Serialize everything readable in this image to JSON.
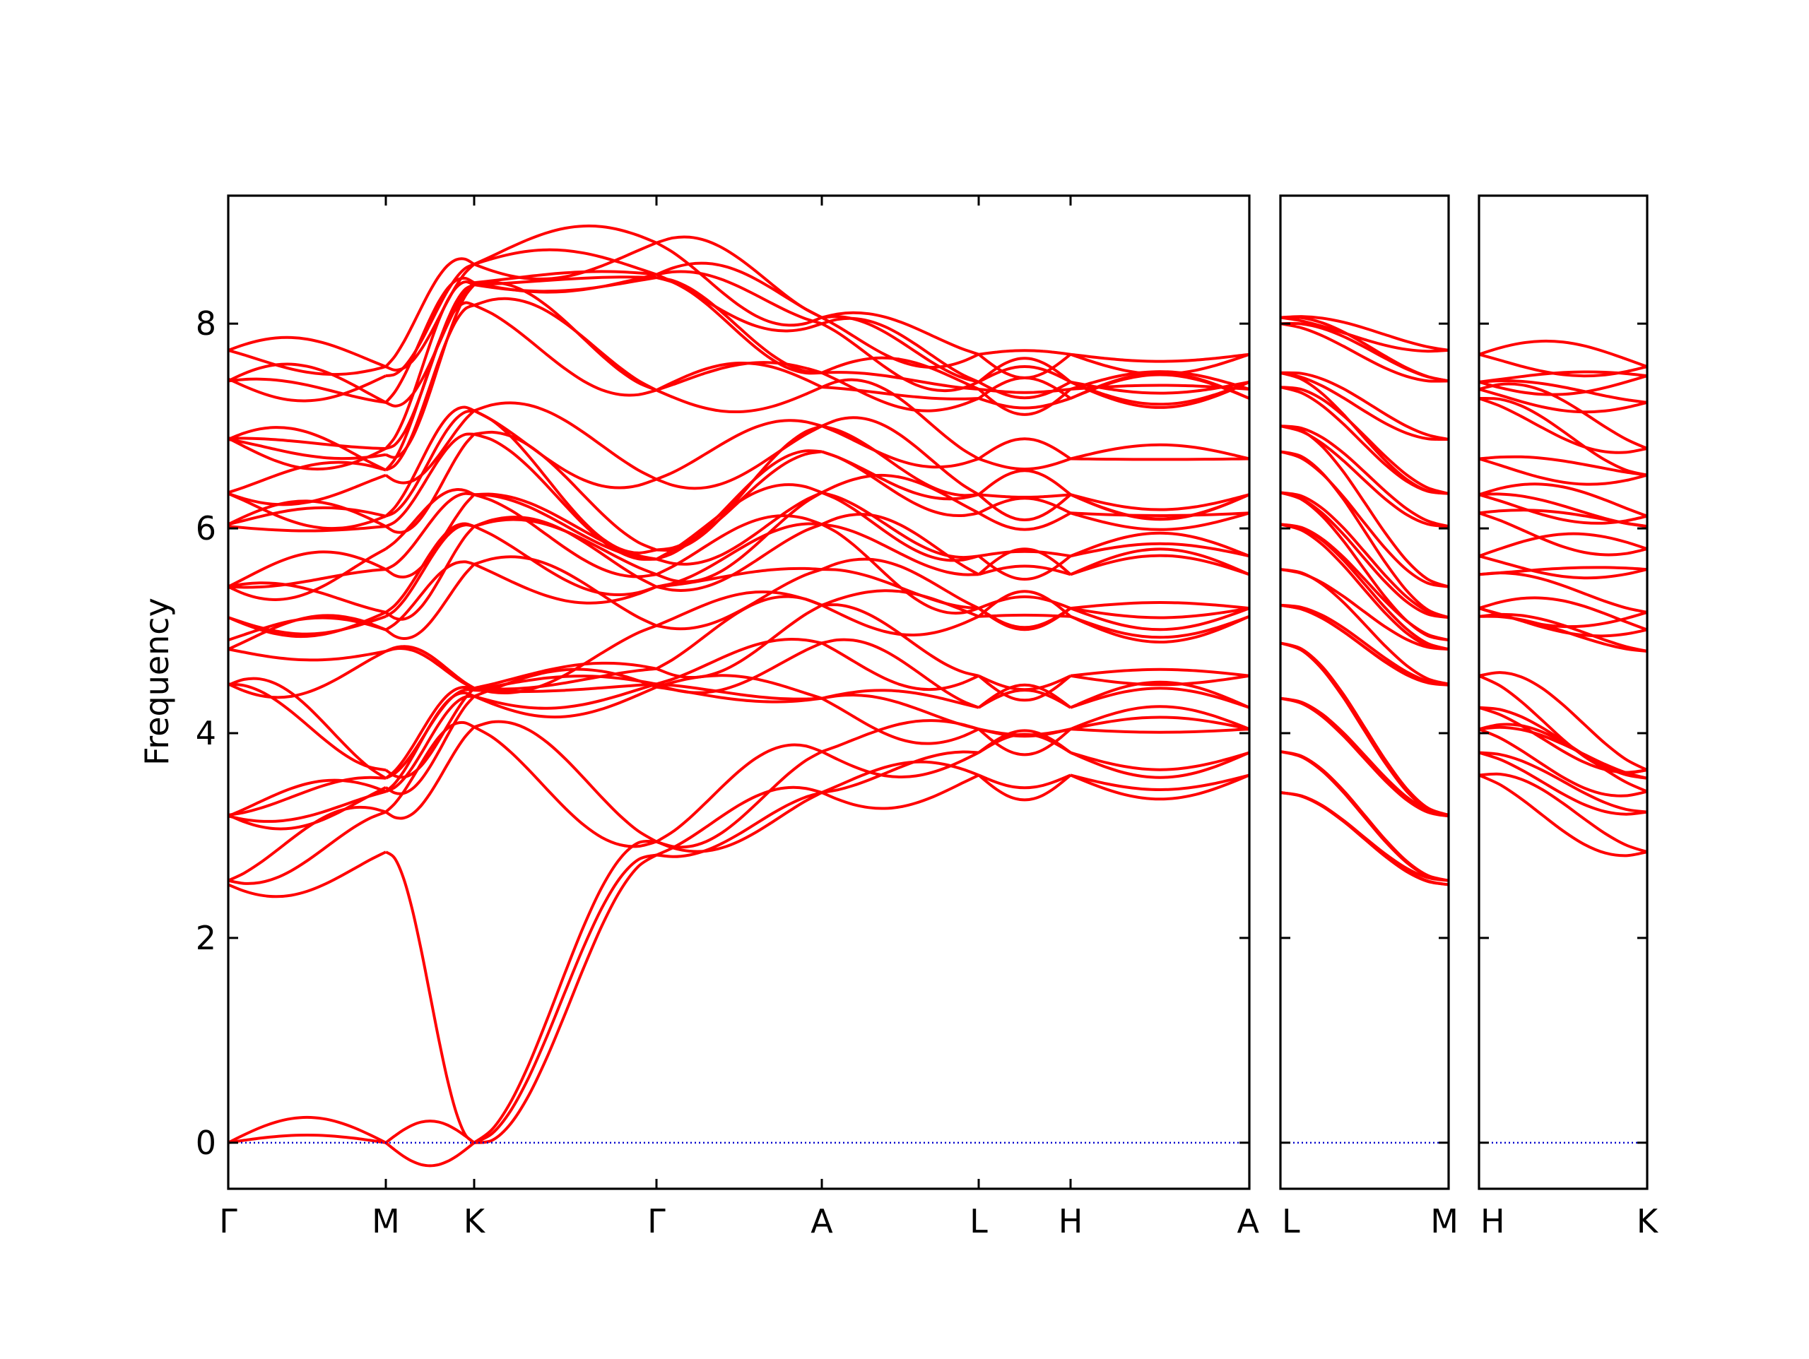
{
  "chart_data": {
    "type": "line",
    "title": "",
    "xlabel": "",
    "ylabel": "Frequency",
    "ylim": [
      -0.45,
      9.25
    ],
    "yticks": [
      0,
      2,
      4,
      6,
      8
    ],
    "grid": false,
    "legend": "none",
    "colors": {
      "bands": "#ff0000",
      "zero_line": "#0000cc",
      "axes": "#000000"
    },
    "panels": [
      {
        "id": "main",
        "path_labels": [
          "Γ",
          "M",
          "K",
          "Γ",
          "A",
          "L",
          "H",
          "A"
        ],
        "band_count": 36,
        "nodes": [
          [
            0,
            2.52,
            2.56,
            3.19,
            3.2,
            4.47,
            4.48,
            4.82,
            4.91,
            5.13,
            5.43,
            5.43,
            6.02,
            6.04,
            6.34,
            6.35,
            6.87,
            6.88,
            7.44,
            7.46,
            7.74
          ],
          [
            0,
            2.84,
            3.23,
            3.43,
            3.47,
            3.56,
            3.64,
            4.8,
            5.01,
            5.14,
            5.18,
            5.6,
            5.8,
            6.02,
            6.12,
            6.52,
            6.57,
            6.72,
            6.78,
            7.23,
            7.49,
            7.58
          ],
          [
            0,
            4.06,
            4.36,
            4.42,
            4.44,
            5.65,
            6.02,
            6.33,
            6.92,
            7.15,
            8.18,
            8.38,
            8.4,
            8.58
          ],
          [
            2.81,
            2.94,
            4.45,
            4.48,
            4.63,
            5.05,
            5.43,
            5.55,
            5.7,
            5.79,
            6.48,
            7.35,
            8.45,
            8.48,
            8.79
          ],
          [
            3.42,
            3.82,
            4.34,
            4.88,
            5.25,
            5.6,
            6.04,
            6.35,
            6.75,
            7.0,
            7.38,
            7.52,
            8.0,
            8.06
          ],
          [
            3.59,
            3.81,
            4.04,
            4.25,
            4.56,
            5.14,
            5.22,
            5.55,
            5.73,
            6.15,
            6.33,
            6.68,
            7.27,
            7.36,
            7.43,
            7.7
          ]
        ]
      },
      {
        "id": "L-M",
        "path_labels": [
          "L",
          "M"
        ],
        "band_count": 36
      },
      {
        "id": "H-K",
        "path_labels": [
          "H",
          "K"
        ],
        "band_count": 36
      }
    ]
  }
}
